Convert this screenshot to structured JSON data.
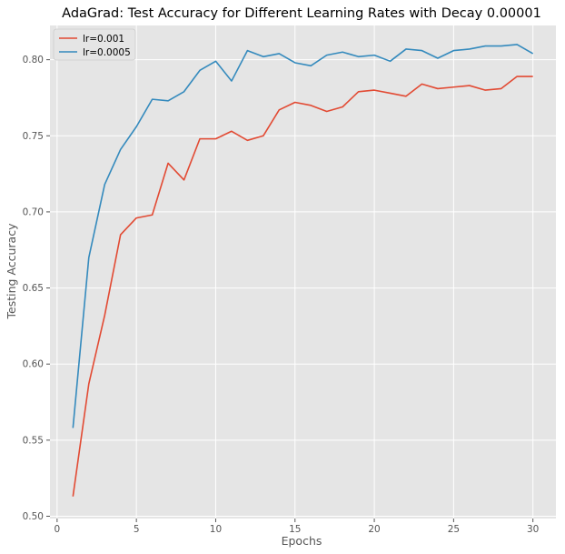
{
  "chart_data": {
    "type": "line",
    "title": "AdaGrad: Test Accuracy for Different Learning Rates with Decay 0.00001",
    "xlabel": "Epochs",
    "ylabel": "Testing Accuracy",
    "xlim": [
      -0.45,
      31.45
    ],
    "ylim": [
      0.4985,
      0.8225
    ],
    "xticks": [
      0,
      5,
      10,
      15,
      20,
      25,
      30
    ],
    "yticks": [
      0.5,
      0.55,
      0.6,
      0.65,
      0.7,
      0.75,
      0.8
    ],
    "xtick_labels": [
      "0",
      "5",
      "10",
      "15",
      "20",
      "25",
      "30"
    ],
    "ytick_labels": [
      "0.50",
      "0.55",
      "0.60",
      "0.65",
      "0.70",
      "0.75",
      "0.80"
    ],
    "grid": true,
    "legend_position": "top-left",
    "x": [
      1,
      2,
      3,
      4,
      5,
      6,
      7,
      8,
      9,
      10,
      11,
      12,
      13,
      14,
      15,
      16,
      17,
      18,
      19,
      20,
      21,
      22,
      23,
      24,
      25,
      26,
      27,
      28,
      29,
      30
    ],
    "series": [
      {
        "name": "lr=0.001",
        "color": "#e24a33",
        "values": [
          0.513,
          0.587,
          0.632,
          0.685,
          0.696,
          0.698,
          0.732,
          0.721,
          0.748,
          0.748,
          0.753,
          0.747,
          0.75,
          0.767,
          0.772,
          0.77,
          0.766,
          0.769,
          0.779,
          0.78,
          0.778,
          0.776,
          0.784,
          0.781,
          0.782,
          0.783,
          0.78,
          0.781,
          0.789,
          0.789
        ]
      },
      {
        "name": "lr=0.0005",
        "color": "#348abd",
        "values": [
          0.558,
          0.67,
          0.718,
          0.741,
          0.756,
          0.774,
          0.773,
          0.779,
          0.793,
          0.799,
          0.786,
          0.806,
          0.802,
          0.804,
          0.798,
          0.796,
          0.803,
          0.805,
          0.802,
          0.803,
          0.799,
          0.807,
          0.806,
          0.801,
          0.806,
          0.807,
          0.809,
          0.809,
          0.81,
          0.804
        ]
      }
    ]
  }
}
